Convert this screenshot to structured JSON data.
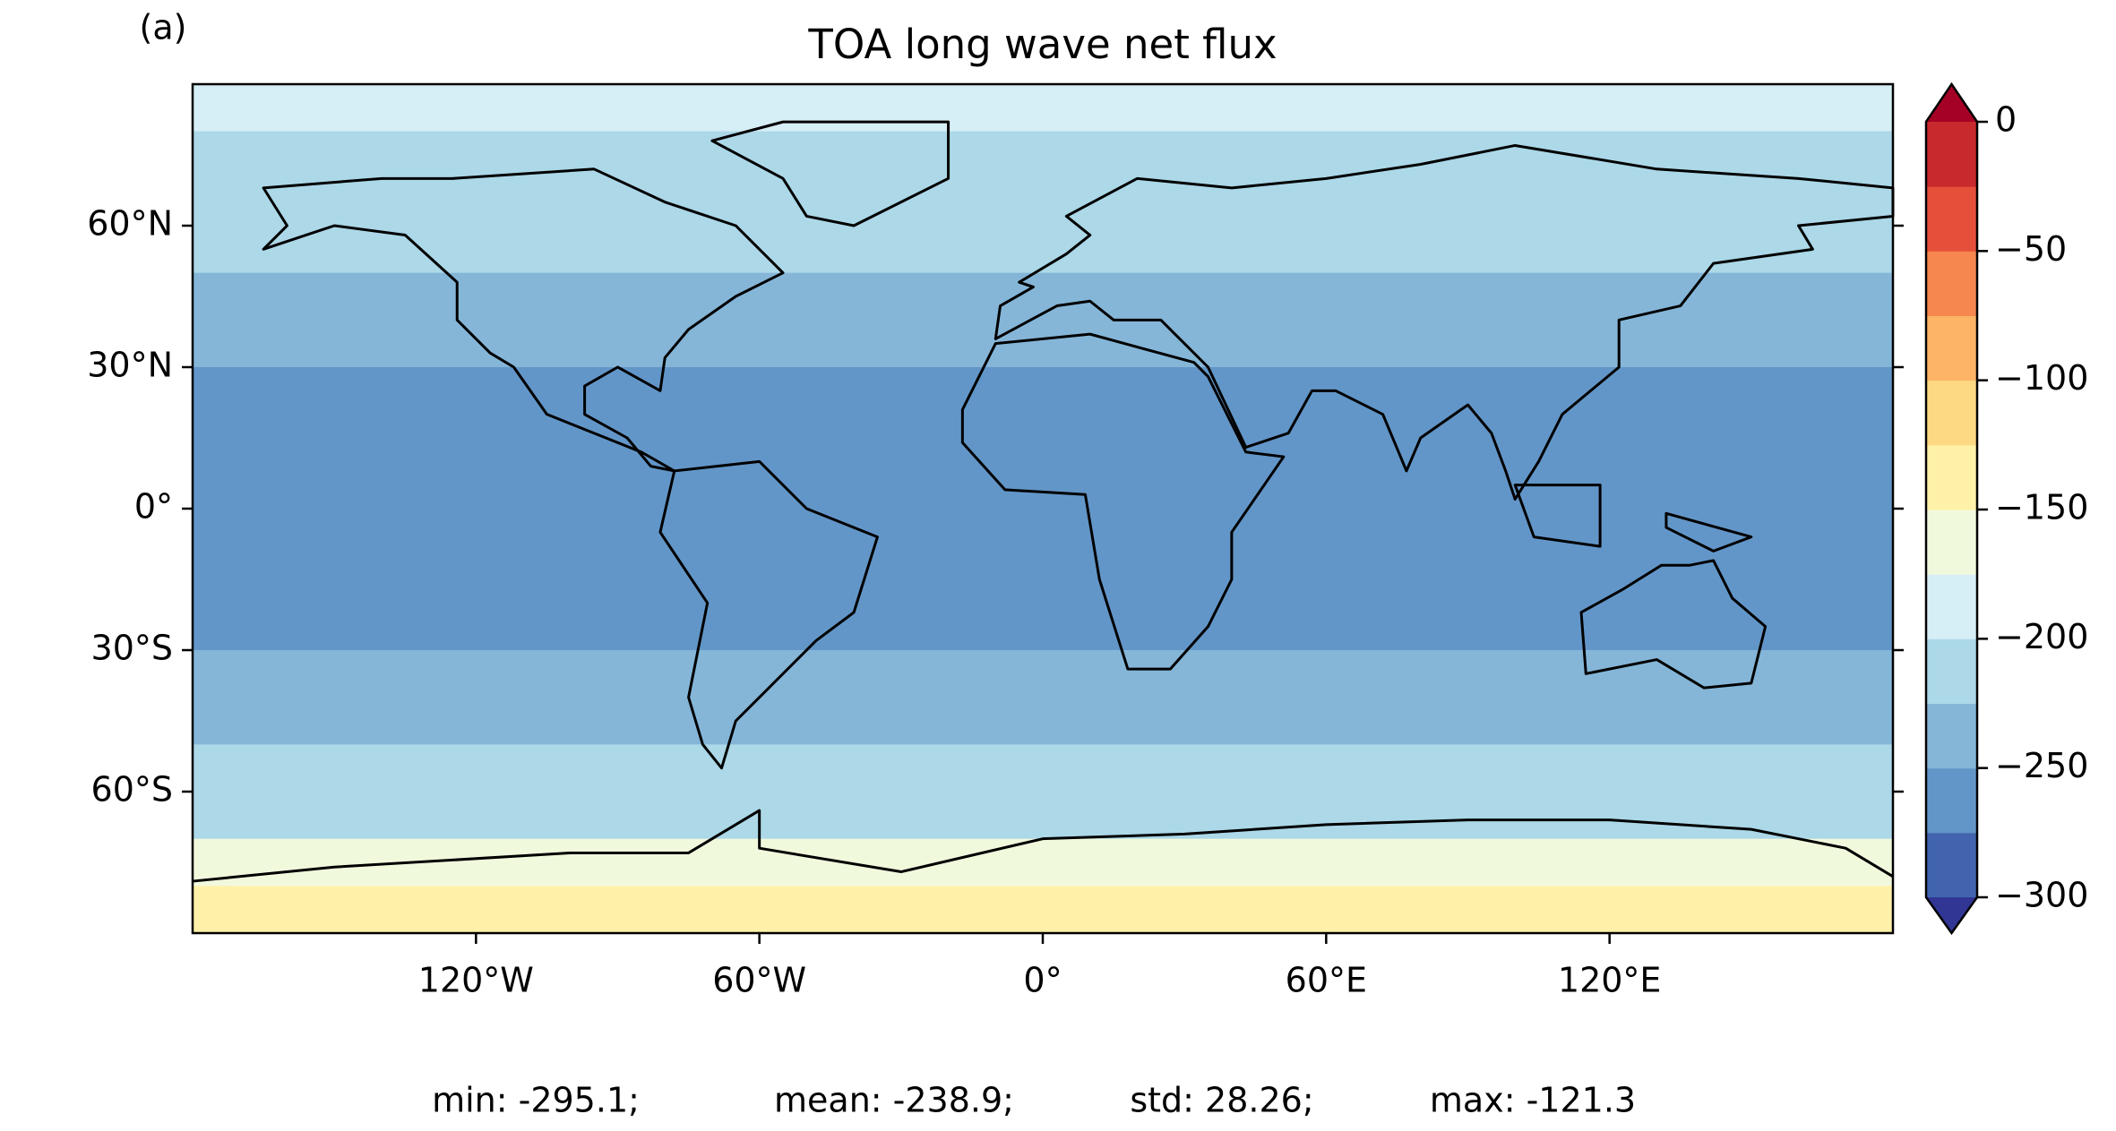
{
  "chart_data": {
    "type": "map",
    "panel_label": "(a)",
    "title": "TOA long wave net flux",
    "xlim": [
      -180,
      180
    ],
    "ylim": [
      -90,
      90
    ],
    "xticks": [
      {
        "value": -120,
        "label": "120°W"
      },
      {
        "value": -60,
        "label": "60°W"
      },
      {
        "value": 0,
        "label": "0°"
      },
      {
        "value": 60,
        "label": "60°E"
      },
      {
        "value": 120,
        "label": "120°E"
      }
    ],
    "yticks": [
      {
        "value": 60,
        "label": "60°N"
      },
      {
        "value": 30,
        "label": "30°N"
      },
      {
        "value": 0,
        "label": "0°"
      },
      {
        "value": -30,
        "label": "30°S"
      },
      {
        "value": -60,
        "label": "60°S"
      }
    ],
    "field": {
      "lat_edges": [
        90,
        80,
        70,
        60,
        50,
        40,
        30,
        20,
        10,
        0,
        -10,
        -20,
        -30,
        -40,
        -50,
        -60,
        -70,
        -80,
        -90
      ],
      "values": [
        -185,
        -205,
        -212,
        -218,
        -232,
        -245,
        -262,
        -262,
        -258,
        -266,
        -266,
        -256,
        -242,
        -228,
        -212,
        -205,
        -165,
        -145
      ]
    },
    "colorbar": {
      "levels": [
        -300,
        -275,
        -250,
        -225,
        -200,
        -175,
        -150,
        -125,
        -100,
        -75,
        -50,
        -25,
        0
      ],
      "colors": [
        "#4264ae",
        "#6396c8",
        "#85b6d8",
        "#acd8e8",
        "#d6eef5",
        "#f1f9dd",
        "#fff1a8",
        "#fed984",
        "#fdb466",
        "#f6874f",
        "#e4503a",
        "#c8292c"
      ],
      "under": "#313695",
      "over": "#a50026",
      "ticks": [
        0,
        {
          "value": -50,
          "label": "−50"
        },
        {
          "value": -100,
          "label": "−100"
        },
        {
          "value": -150,
          "label": "−150"
        },
        {
          "value": -200,
          "label": "−200"
        },
        {
          "value": -250,
          "label": "−250"
        },
        {
          "value": -300,
          "label": "−300"
        }
      ]
    },
    "stats": [
      "min: -295.1;",
      "mean: -238.9;",
      "std: 28.26;",
      "max: -121.3"
    ]
  }
}
